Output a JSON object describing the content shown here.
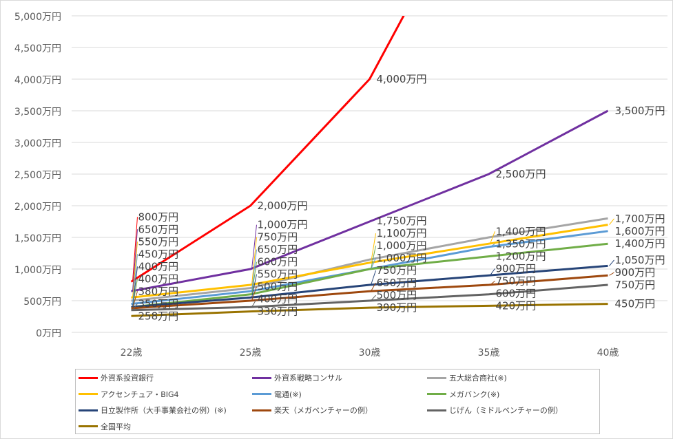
{
  "chart_data": {
    "type": "line",
    "categories": [
      "22歳",
      "25歳",
      "30歳",
      "35歳",
      "40歳"
    ],
    "ylim": [
      0,
      5000
    ],
    "y_ticks": [
      "0万円",
      "500万円",
      "1,000万円",
      "1,500万円",
      "2,000万円",
      "2,500万円",
      "3,000万円",
      "3,500万円",
      "4,000万円",
      "4,500万円",
      "5,000万円"
    ],
    "grid": true,
    "legend_position": "bottom",
    "series": [
      {
        "name": "外資系投資銀行",
        "color": "#ff0000",
        "values": [
          800,
          2000,
          4000,
          null,
          null
        ],
        "labels": [
          "800万円",
          "2,000万円",
          "4,000万円",
          "",
          ""
        ]
      },
      {
        "name": "外資系戦略コンサル",
        "color": "#7030a0",
        "values": [
          650,
          1000,
          1750,
          2500,
          3500
        ],
        "labels": [
          "650万円",
          "1,000万円",
          "1,750万円",
          "2,500万円",
          "3,500万円"
        ]
      },
      {
        "name": "五大総合商社(※)",
        "color": "#a5a5a5",
        "values": [
          500,
          700,
          1150,
          1500,
          1800
        ],
        "labels": [
          "",
          "",
          "",
          "",
          ""
        ]
      },
      {
        "name": "アクセンチュア・BIG4",
        "color": "#ffc000",
        "values": [
          550,
          750,
          1100,
          1400,
          1700
        ],
        "labels": [
          "550万円",
          "750万円",
          "1,100万円",
          "1,400万円",
          "1,700万円"
        ]
      },
      {
        "name": "電通(※)",
        "color": "#5b9bd5",
        "values": [
          450,
          650,
          1000,
          1350,
          1600
        ],
        "labels": [
          "450万円",
          "650万円",
          "1,000万円",
          "1,350万円",
          "1,600万円"
        ]
      },
      {
        "name": "メガバンク(※)",
        "color": "#70ad47",
        "values": [
          400,
          600,
          1000,
          1200,
          1400
        ],
        "labels": [
          "400万円",
          "600万円",
          "1,000万円",
          "1,200万円",
          "1,400万円"
        ]
      },
      {
        "name": "日立製作所（大手事業会社の例）(※)",
        "color": "#264478",
        "values": [
          400,
          550,
          750,
          900,
          1050
        ],
        "labels": [
          "400万円",
          "550万円",
          "750万円",
          "900万円",
          "1,050万円"
        ]
      },
      {
        "name": "楽天（メガベンチャーの例）",
        "color": "#9e480e",
        "values": [
          380,
          500,
          650,
          750,
          900
        ],
        "labels": [
          "380万円",
          "500万円",
          "650万円",
          "750万円",
          "900万円"
        ]
      },
      {
        "name": "じげん（ミドルベンチャーの例）",
        "color": "#636363",
        "values": [
          350,
          400,
          500,
          600,
          750
        ],
        "labels": [
          "350万円",
          "400万円",
          "500万円",
          "600万円",
          "750万円"
        ]
      },
      {
        "name": "全国平均",
        "color": "#997300",
        "values": [
          258,
          330,
          390,
          420,
          450
        ],
        "labels": [
          "258万円",
          "330万円",
          "390万円",
          "420万円",
          "450万円"
        ]
      }
    ]
  }
}
